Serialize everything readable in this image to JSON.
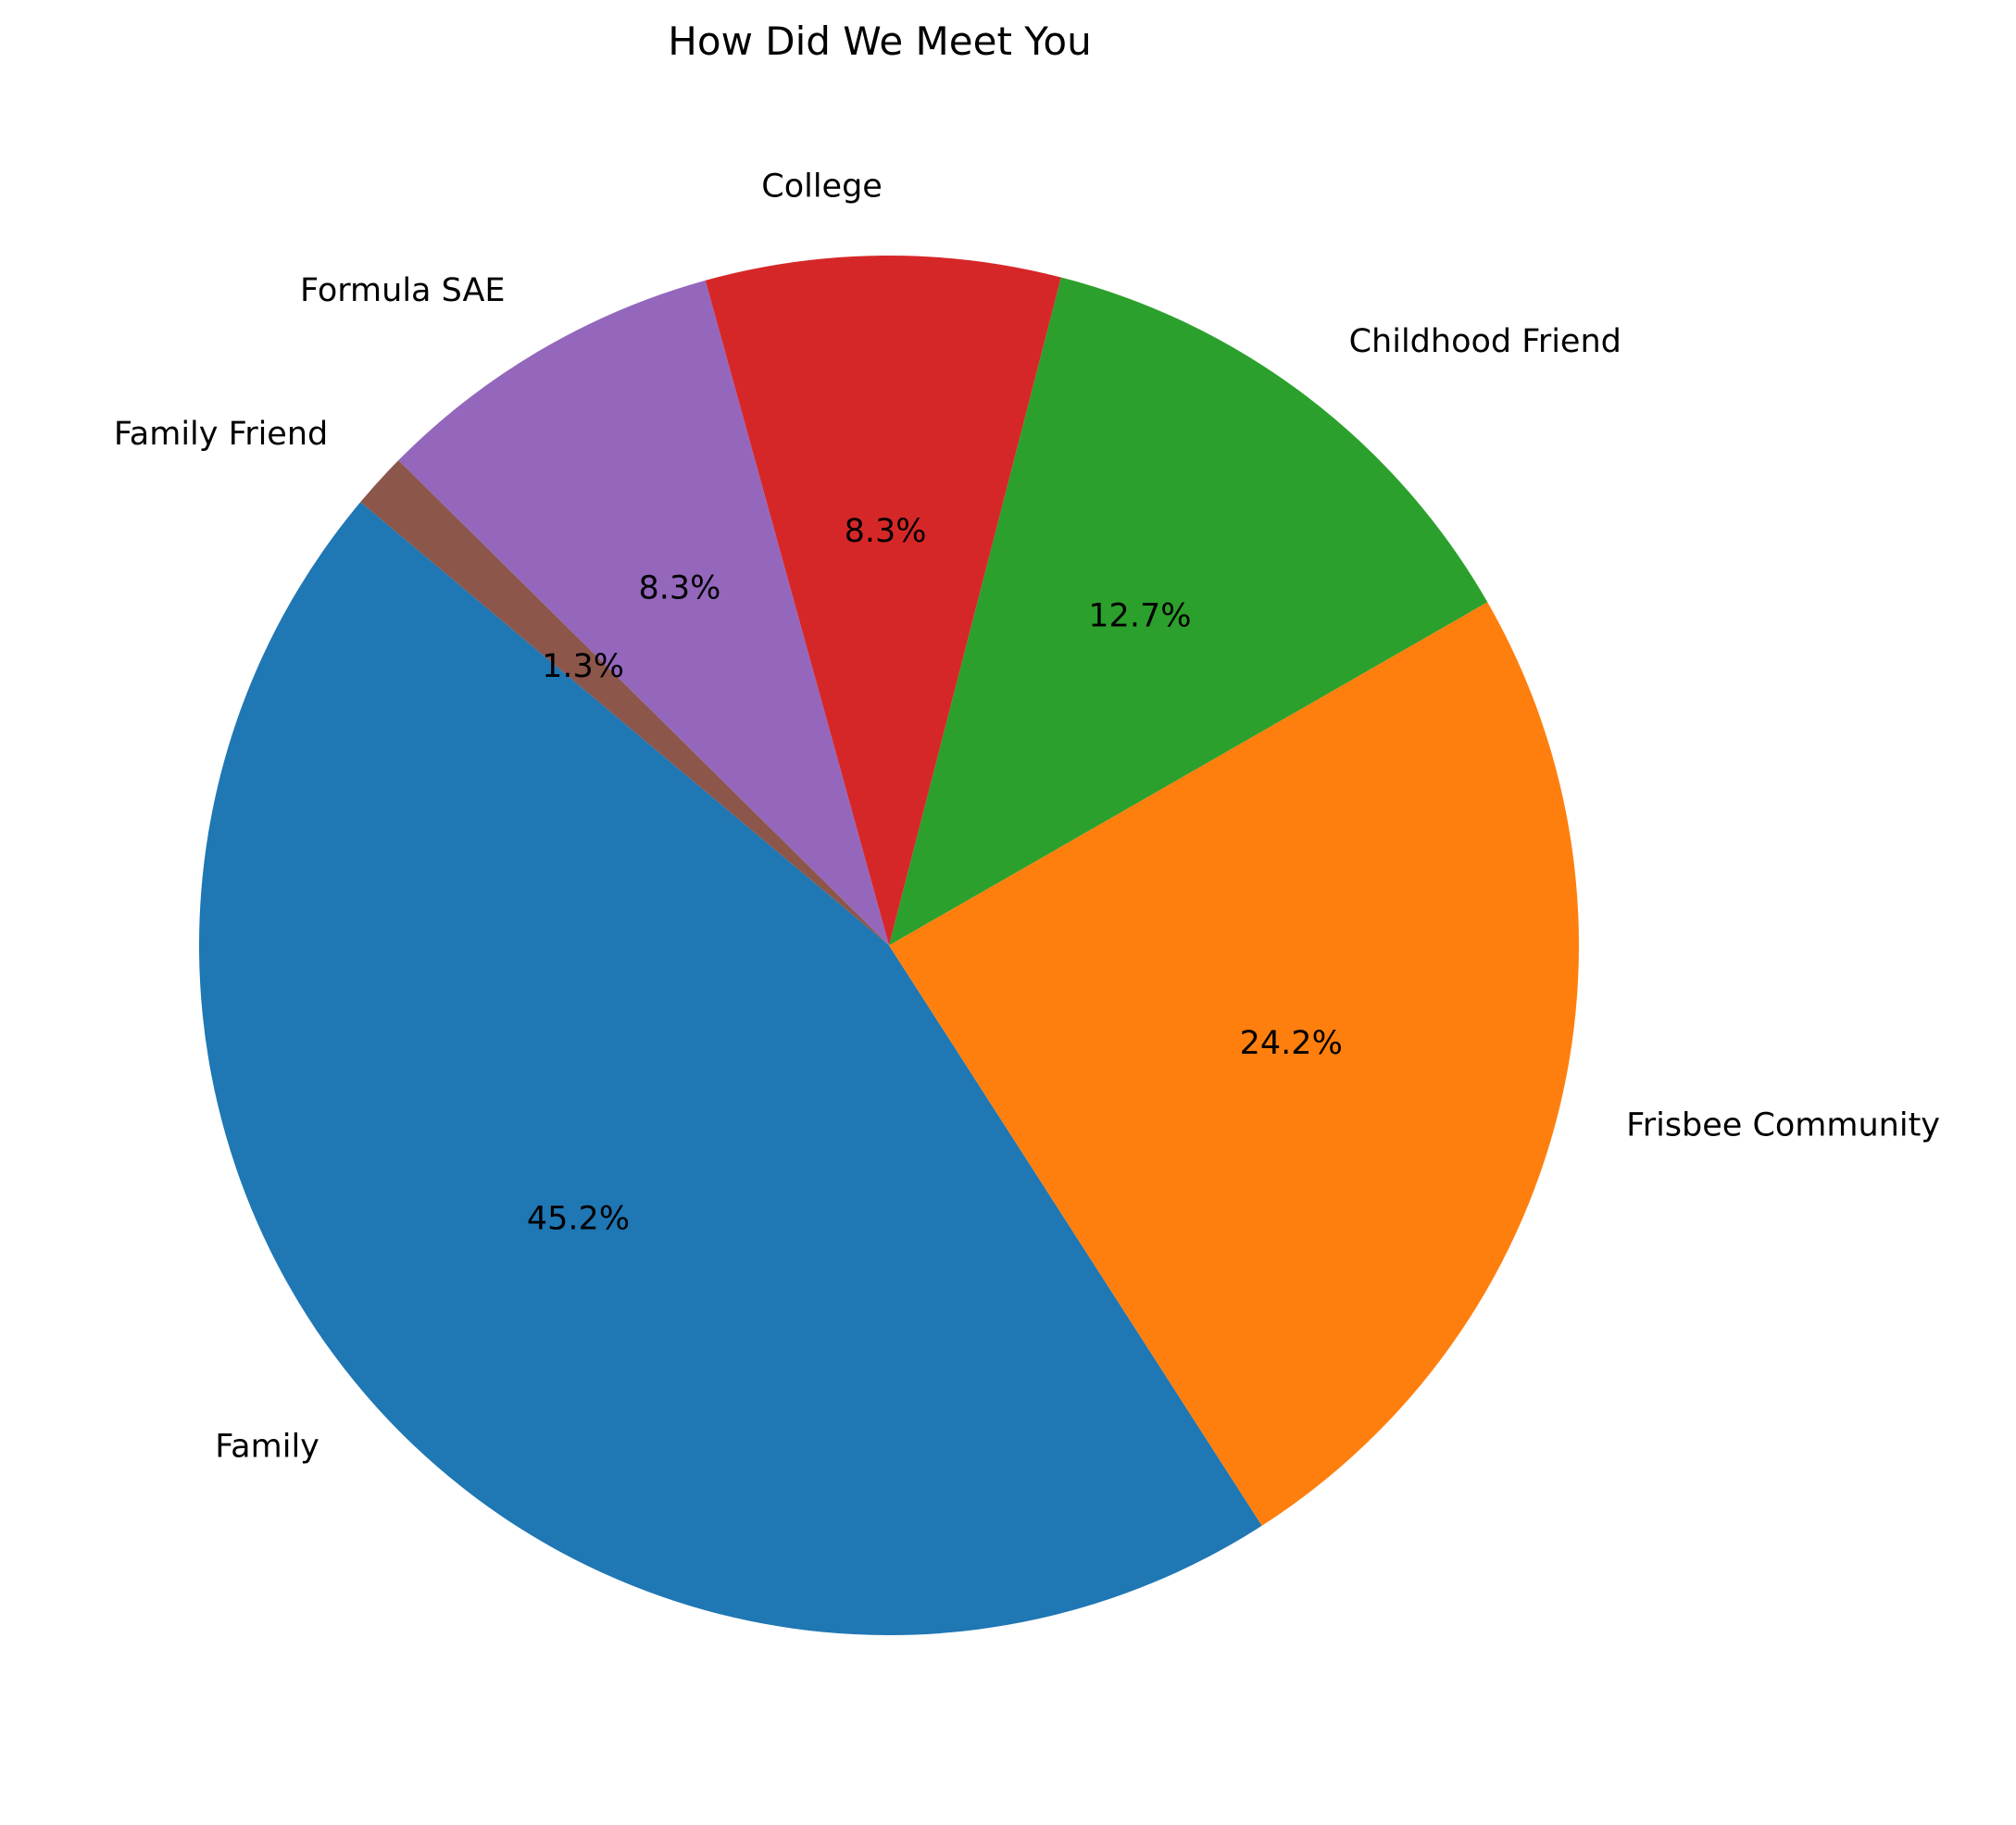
{
  "chart_data": {
    "type": "pie",
    "title": "How Did We Meet You",
    "start_angle_deg": 140,
    "direction": "counterclockwise",
    "slices": [
      {
        "label": "Family",
        "value": 45.2,
        "pct_text": "45.2%",
        "color": "#1f77b4"
      },
      {
        "label": "Frisbee Community",
        "value": 24.2,
        "pct_text": "24.2%",
        "color": "#ff7f0e"
      },
      {
        "label": "Childhood Friend",
        "value": 12.7,
        "pct_text": "12.7%",
        "color": "#2ca02c"
      },
      {
        "label": "College",
        "value": 8.3,
        "pct_text": "8.3%",
        "color": "#d62728"
      },
      {
        "label": "Formula SAE",
        "value": 8.3,
        "pct_text": "8.3%",
        "color": "#9467bd"
      },
      {
        "label": "Family Friend",
        "value": 1.3,
        "pct_text": "1.3%",
        "color": "#8c564b"
      }
    ],
    "legend": "none"
  }
}
